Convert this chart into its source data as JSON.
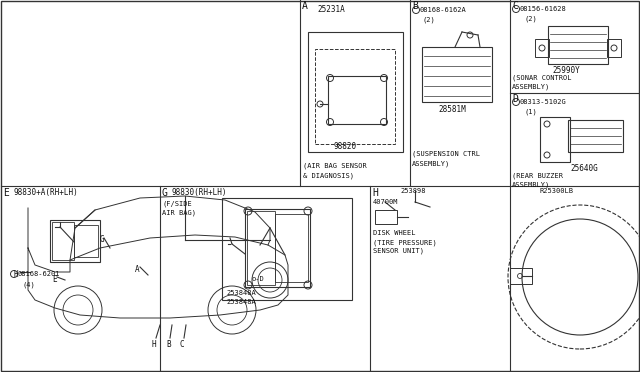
{
  "bg_color": "#ffffff",
  "line_color": "#333333",
  "sections": {
    "A_label": "A",
    "A_part": "98820",
    "A_desc1": "(AIR BAG SENSOR",
    "A_desc2": "& DIAGNOSIS)",
    "A_subpart": "25231A",
    "B_label": "B",
    "B_part": "28581M",
    "B_desc1": "(SUSPENSION CTRL",
    "B_desc2": "ASSEMBLY)",
    "B_screw": "08168-6162A",
    "B_screw2": "(2)",
    "C_label": "C",
    "C_part": "25990Y",
    "C_desc1": "(SONAR CONTROL",
    "C_desc2": "ASSEMBLY)",
    "C_screw": "08156-61628",
    "C_screw2": "(2)",
    "D_label": "D",
    "D_part": "25640G",
    "D_desc1": "(REAR BUZZER",
    "D_desc2": "ASSEMBLY)",
    "D_screw": "08313-5102G",
    "D_screw2": "(1)",
    "E_label": "E",
    "E_part": "98830+A(RH+LH)",
    "E_screw": "08168-6201",
    "E_screw2": "(4)",
    "G_label": "G",
    "G_part": "98830(RH+LH)",
    "G_desc1": "(F/SIDE",
    "G_desc2": "AIR BAG)",
    "G_sub1": "253848A",
    "G_sub2": "253848A",
    "H_label": "H",
    "H_part": "40700M",
    "H_sub": "253898",
    "H_desc1": "DISK WHEEL",
    "H_desc2": "(TIRE PRESSURE)",
    "H_desc3": "SENSOR UNIT)",
    "H_ref": "R25300LB"
  }
}
